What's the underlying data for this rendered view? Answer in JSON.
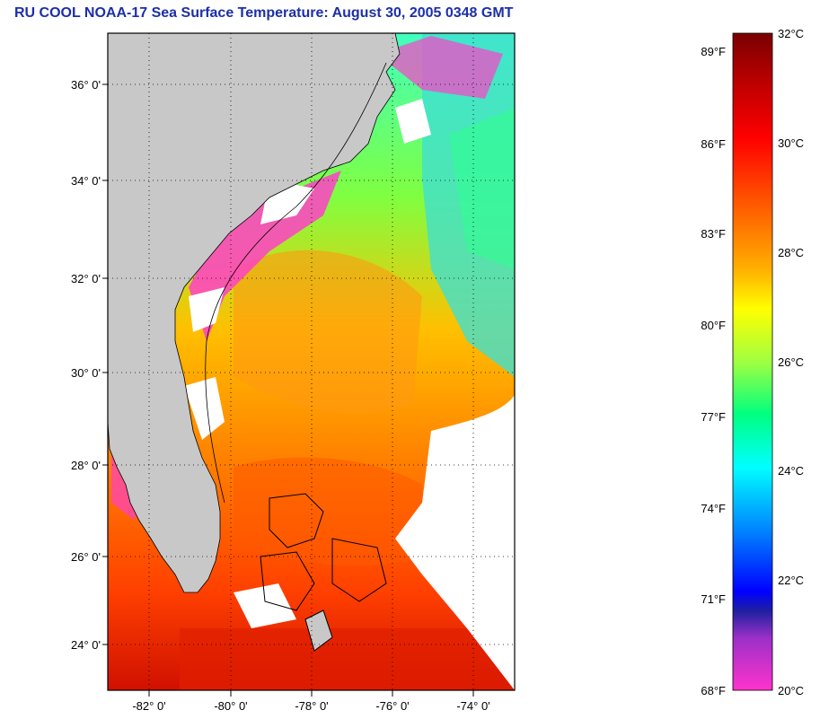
{
  "title": "RU COOL  NOAA-17  Sea Surface Temperature:  August 30, 2005 0348 GMT",
  "map": {
    "lat_labels": [
      "36° 0'",
      "34° 0'",
      "32° 0'",
      "30° 0'",
      "28° 0'",
      "26° 0'",
      "24° 0'"
    ],
    "lon_labels": [
      "-82° 0'",
      "-80° 0'",
      "-78° 0'",
      "-76° 0'",
      "-74° 0'"
    ],
    "land_color": "#c8c8c8",
    "no_data_color": "#ffffff"
  },
  "colorbar": {
    "fahrenheit_labels": [
      "89°F",
      "86°F",
      "83°F",
      "80°F",
      "77°F",
      "74°F",
      "71°F",
      "68°F"
    ],
    "celsius_labels": [
      "32°C",
      "30°C",
      "28°C",
      "26°C",
      "24°C",
      "22°C",
      "20°C"
    ],
    "colors": [
      "#7a0000",
      "#ff0000",
      "#ff8000",
      "#ffff00",
      "#00ff80",
      "#00ffff",
      "#0000ff",
      "#ff33cc"
    ]
  }
}
